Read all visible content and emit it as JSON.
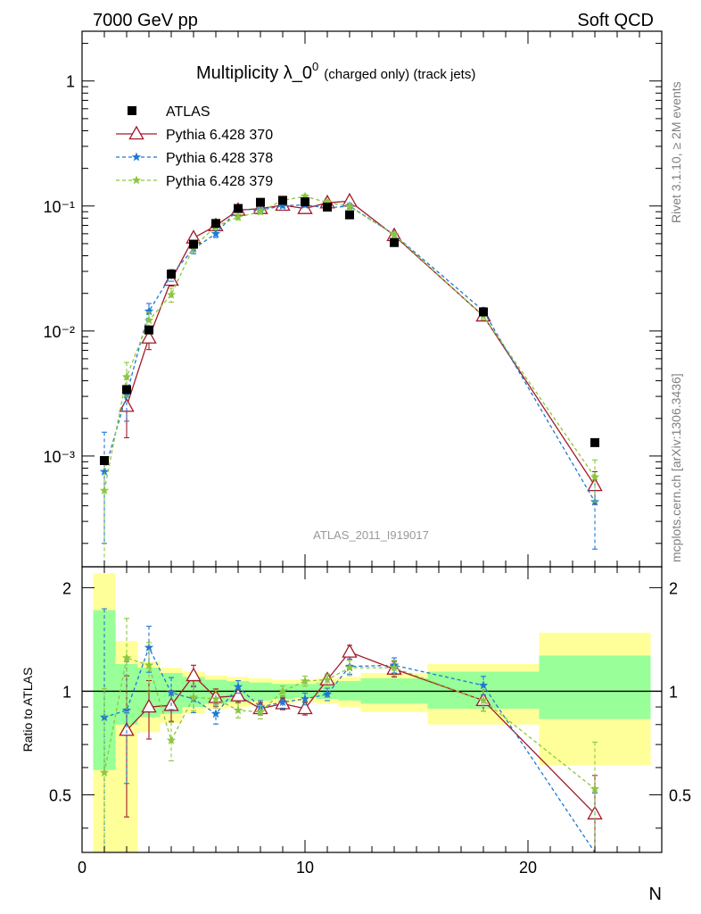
{
  "header": {
    "left": "7000 GeV pp",
    "right": "Soft QCD"
  },
  "side_labels": {
    "rivet": "Rivet 3.1.10, ≥ 2M events",
    "site": "mcplots.cern.ch [arXiv:1306.3436]"
  },
  "chart_data": {
    "type": "scatter",
    "title": "Multiplicity λ_0⁰ (charged only) (track jets)",
    "title_main": "Multiplicity λ_0",
    "title_sup": "0",
    "title_sub": "(charged only) (track jets)",
    "analysis_label": "ATLAS_2011_I919017",
    "xlabel": "N",
    "ylabel_ratio": "Ratio to ATLAS",
    "xlim": [
      0,
      26
    ],
    "ylim": [
      0.00013,
      2.5
    ],
    "ylim_ratio": [
      0.34,
      2.3
    ],
    "yscale": "log",
    "yscale_ratio": "log",
    "x_ticks": [
      "0",
      "10",
      "20"
    ],
    "y_ticks": [
      "10⁻³",
      "10⁻²",
      "10⁻¹",
      "1"
    ],
    "y_ticks_ratio": [
      "0.5",
      "1",
      "2"
    ],
    "legend_position": "top-left",
    "data": {
      "name": "ATLAS",
      "color": "#000000",
      "x": [
        1,
        2,
        3,
        4,
        5,
        6,
        7,
        8,
        9,
        10,
        11,
        12,
        14,
        18,
        23
      ],
      "y": [
        0.00092,
        0.0034,
        0.0102,
        0.0285,
        0.0495,
        0.0725,
        0.0955,
        0.107,
        0.111,
        0.108,
        0.098,
        0.085,
        0.051,
        0.0142,
        0.00128
      ]
    },
    "ratio_bands": {
      "x_edges": [
        0.5,
        1.5,
        2.5,
        3.5,
        4.5,
        5.5,
        6.5,
        7.5,
        8.5,
        9.5,
        10.5,
        11.5,
        12.5,
        15.5,
        20.5,
        25.5
      ],
      "stat_lo": [
        0.59,
        0.8,
        0.84,
        0.86,
        0.9,
        0.92,
        0.93,
        0.94,
        0.95,
        0.96,
        0.95,
        0.94,
        0.92,
        0.89,
        0.83
      ],
      "stat_hi": [
        1.72,
        1.2,
        1.17,
        1.13,
        1.1,
        1.08,
        1.07,
        1.06,
        1.05,
        1.05,
        1.06,
        1.07,
        1.09,
        1.14,
        1.27
      ],
      "total_lo": [
        0.34,
        0.34,
        0.76,
        0.81,
        0.86,
        0.89,
        0.9,
        0.91,
        0.92,
        0.93,
        0.92,
        0.9,
        0.87,
        0.8,
        0.61
      ],
      "total_hi": [
        2.2,
        1.4,
        1.22,
        1.17,
        1.14,
        1.11,
        1.1,
        1.09,
        1.08,
        1.08,
        1.09,
        1.1,
        1.13,
        1.2,
        1.48
      ],
      "stat_color": "#99ff99",
      "total_color": "#ffff99"
    },
    "series": [
      {
        "name": "Pythia 6.428 370",
        "color": "#a31a2a",
        "marker": "open-triangle",
        "dash": "solid",
        "x": [
          2,
          3,
          4,
          5,
          6,
          7,
          8,
          9,
          10,
          11,
          12,
          14,
          18,
          23
        ],
        "y": [
          0.0025,
          0.0088,
          0.0255,
          0.0555,
          0.0695,
          0.0925,
          0.0955,
          0.1015,
          0.0955,
          0.106,
          0.1095,
          0.058,
          0.0132,
          0.00058
        ],
        "ratio": [
          0.77,
          0.9,
          0.91,
          1.11,
          0.96,
          0.97,
          0.89,
          0.92,
          0.89,
          1.08,
          1.3,
          1.16,
          0.94,
          0.44
        ],
        "yerr_lo": [
          0.0011,
          0.0017,
          0.0026,
          0.004,
          0.004,
          0.004,
          0.004,
          0.004,
          0.004,
          0.004,
          0.005,
          0.003,
          0.0009,
          0.00017
        ],
        "yerr_hi": [
          0.0011,
          0.0017,
          0.0026,
          0.004,
          0.004,
          0.004,
          0.004,
          0.004,
          0.004,
          0.004,
          0.005,
          0.003,
          0.0009,
          0.00017
        ]
      },
      {
        "name": "Pythia 6.428 378",
        "color": "#1f78d2",
        "marker": "star",
        "dash": "dashed",
        "x": [
          1,
          2,
          3,
          4,
          5,
          6,
          7,
          8,
          9,
          10,
          11,
          12,
          14,
          18,
          23
        ],
        "y": [
          0.00075,
          0.0031,
          0.0144,
          0.028,
          0.0455,
          0.06,
          0.0945,
          0.0925,
          0.1005,
          0.102,
          0.0965,
          0.1,
          0.059,
          0.0145,
          0.00043
        ],
        "ratio": [
          0.84,
          0.88,
          1.34,
          0.99,
          0.95,
          0.86,
          1.03,
          0.9,
          0.93,
          0.95,
          0.98,
          1.18,
          1.19,
          1.04,
          0.32
        ],
        "yerr_lo": [
          0.00055,
          0.0012,
          0.0022,
          0.003,
          0.004,
          0.004,
          0.004,
          0.004,
          0.004,
          0.004,
          0.004,
          0.005,
          0.003,
          0.0009,
          0.00025
        ],
        "yerr_hi": [
          0.0008,
          0.0012,
          0.0022,
          0.003,
          0.004,
          0.004,
          0.004,
          0.004,
          0.004,
          0.004,
          0.004,
          0.005,
          0.003,
          0.0009,
          0.00025
        ]
      },
      {
        "name": "Pythia 6.428 379",
        "color": "#8cc63f",
        "marker": "star",
        "dash": "dashed",
        "x": [
          1,
          2,
          3,
          4,
          5,
          6,
          7,
          8,
          9,
          10,
          11,
          12,
          14,
          18,
          23
        ],
        "y": [
          0.00053,
          0.0043,
          0.0122,
          0.0195,
          0.047,
          0.0685,
          0.0815,
          0.09,
          0.111,
          0.119,
          0.107,
          0.099,
          0.059,
          0.0132,
          0.00068
        ],
        "ratio": [
          0.58,
          1.25,
          1.19,
          0.72,
          0.96,
          0.95,
          0.88,
          0.87,
          1.0,
          1.07,
          1.08,
          1.17,
          1.17,
          0.94,
          0.52
        ],
        "yerr_lo": [
          0.00045,
          0.0013,
          0.002,
          0.0025,
          0.004,
          0.004,
          0.004,
          0.004,
          0.004,
          0.004,
          0.004,
          0.005,
          0.003,
          0.0009,
          0.00025
        ],
        "yerr_hi": [
          0.0004,
          0.0013,
          0.002,
          0.0025,
          0.004,
          0.004,
          0.004,
          0.004,
          0.004,
          0.004,
          0.004,
          0.005,
          0.003,
          0.0009,
          0.00025
        ]
      }
    ]
  }
}
